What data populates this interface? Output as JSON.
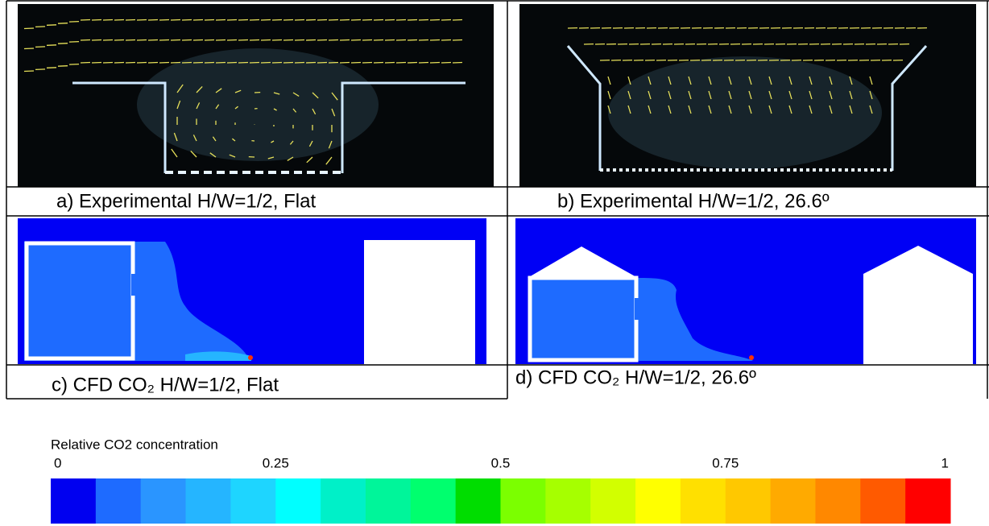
{
  "panels": [
    {
      "caption": "a)  Experimental H/W=1/2, Flat"
    },
    {
      "caption": "b)  Experimental H/W=1/2, 26.6º"
    },
    {
      "caption": "c)  CFD CO₂ H/W=1/2, Flat"
    },
    {
      "caption": "d) CFD CO₂ H/W=1/2, 26.6º"
    }
  ],
  "colorbar": {
    "title": "Relative CO2 concentration",
    "lim": [
      0,
      1
    ],
    "ticks": [
      0,
      0.25,
      0.5,
      0.75,
      1
    ],
    "colors": [
      "#0000f0",
      "#1e6bff",
      "#2a95ff",
      "#25b5ff",
      "#1ed5ff",
      "#00ffff",
      "#00f0c8",
      "#00f59a",
      "#00ff6e",
      "#00dd00",
      "#7bff00",
      "#a6ff00",
      "#d2ff00",
      "#ffff00",
      "#ffe000",
      "#ffc800",
      "#ffaa00",
      "#ff8800",
      "#ff5a00",
      "#ff0000"
    ]
  }
}
